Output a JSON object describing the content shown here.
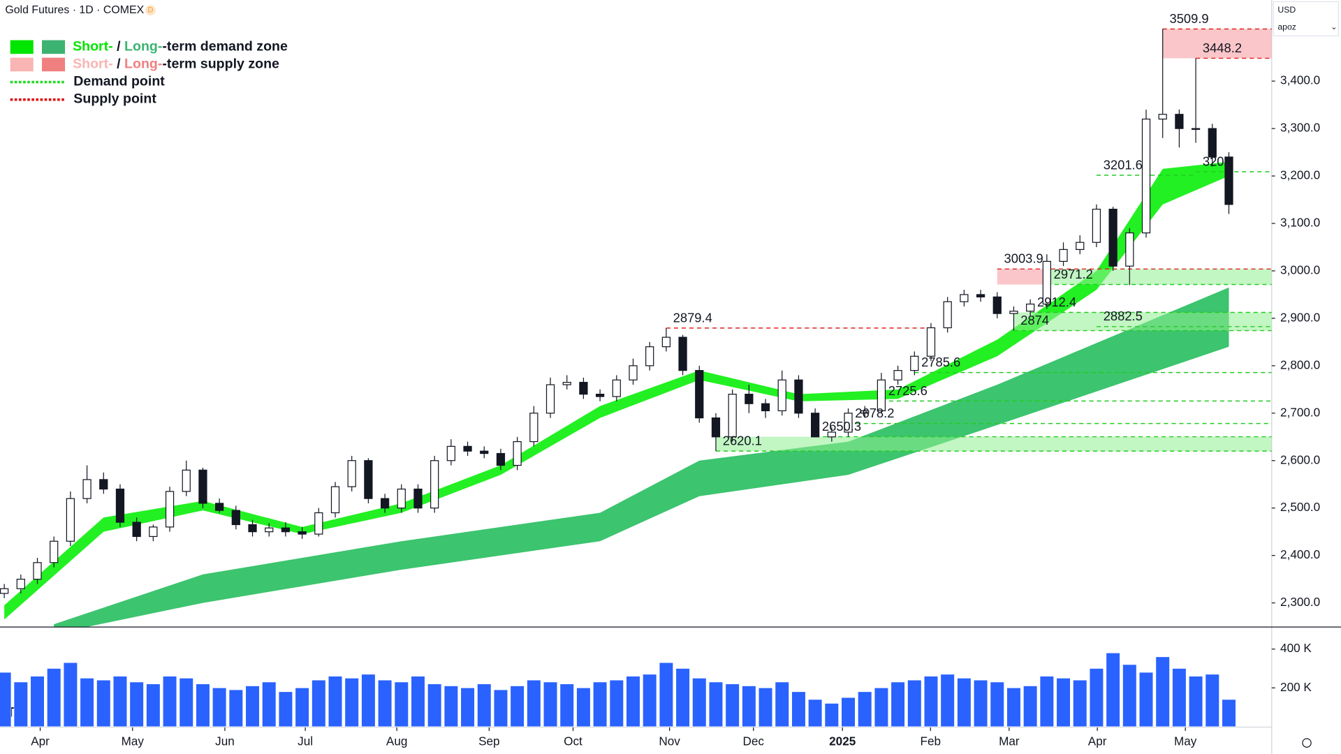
{
  "chart_data": {
    "type": "candlestick",
    "title": "Gold Futures · 1D · COMEX",
    "badge": "D",
    "currency": "USD",
    "user": "apoz",
    "open": [
      2320,
      2330,
      2350,
      2385,
      2430,
      2520,
      2560,
      2540,
      2470,
      2440,
      2460,
      2535,
      2580,
      2510,
      2495,
      2465,
      2450,
      2458,
      2450,
      2445,
      2490,
      2545,
      2600,
      2520,
      2500,
      2540,
      2500,
      2600,
      2630,
      2620,
      2615,
      2590,
      2640,
      2700,
      2760,
      2765,
      2740,
      2735,
      2770,
      2800,
      2840,
      2860,
      2790,
      2690,
      2650,
      2740,
      2720,
      2705,
      2770,
      2700,
      2650,
      2660,
      2700,
      2705,
      2770,
      2790,
      2820,
      2880,
      2935,
      2950,
      2945,
      2910,
      2915,
      2930,
      3020,
      3045,
      3060,
      3130,
      3010,
      3080,
      3320,
      3330,
      3300,
      3300,
      3240
    ],
    "high": [
      2340,
      2360,
      2395,
      2440,
      2535,
      2590,
      2575,
      2550,
      2480,
      2465,
      2545,
      2600,
      2585,
      2520,
      2505,
      2475,
      2468,
      2470,
      2460,
      2500,
      2555,
      2610,
      2605,
      2530,
      2550,
      2550,
      2610,
      2645,
      2640,
      2630,
      2625,
      2650,
      2715,
      2775,
      2780,
      2775,
      2750,
      2780,
      2815,
      2850,
      2879.4,
      2865,
      2800,
      2700,
      2750,
      2760,
      2730,
      2790,
      2780,
      2710,
      2670,
      2710,
      2715,
      2785,
      2800,
      2830,
      2890,
      2945,
      2960,
      2960,
      2955,
      2925,
      2940,
      3035,
      3060,
      3075,
      3140,
      3135,
      3090,
      3340,
      3509.9,
      3340,
      3448.2,
      3310,
      3250
    ],
    "low": [
      2310,
      2320,
      2340,
      2375,
      2420,
      2510,
      2530,
      2460,
      2430,
      2430,
      2450,
      2525,
      2500,
      2490,
      2455,
      2440,
      2440,
      2440,
      2435,
      2440,
      2480,
      2535,
      2510,
      2490,
      2490,
      2490,
      2490,
      2590,
      2610,
      2605,
      2580,
      2580,
      2630,
      2690,
      2750,
      2730,
      2725,
      2725,
      2760,
      2790,
      2830,
      2780,
      2680,
      2620.1,
      2640,
      2700,
      2690,
      2695,
      2690,
      2650.3,
      2640,
      2650,
      2690,
      2700,
      2760,
      2780,
      2810,
      2870,
      2925,
      2935,
      2900,
      2874.0,
      2905,
      2920,
      3010,
      3035,
      3050,
      3000,
      2970,
      3070,
      3280,
      3260,
      3270,
      3220,
      3120
    ],
    "close": [
      2330,
      2350,
      2385,
      2430,
      2520,
      2560,
      2540,
      2470,
      2440,
      2460,
      2535,
      2580,
      2510,
      2495,
      2465,
      2450,
      2458,
      2450,
      2445,
      2490,
      2545,
      2600,
      2520,
      2500,
      2540,
      2500,
      2600,
      2630,
      2620,
      2615,
      2590,
      2640,
      2700,
      2760,
      2765,
      2740,
      2735,
      2770,
      2800,
      2840,
      2860,
      2790,
      2690,
      2650,
      2740,
      2720,
      2705,
      2770,
      2700,
      2650,
      2660,
      2700,
      2705,
      2770,
      2790,
      2820,
      2880,
      2935,
      2950,
      2945,
      2910,
      2915,
      2930,
      3020,
      3045,
      3060,
      3130,
      3010,
      3080,
      3320,
      3330,
      3300,
      3300,
      3240,
      3140
    ],
    "ylim": [
      2250,
      3571
    ],
    "yticks": [
      {
        "value": 2300,
        "label": "2,300.0"
      },
      {
        "value": 2400,
        "label": "2,400.0"
      },
      {
        "value": 2500,
        "label": "2,500.0"
      },
      {
        "value": 2600,
        "label": "2,600.0"
      },
      {
        "value": 2700,
        "label": "2,700.0"
      },
      {
        "value": 2800,
        "label": "2,800.0"
      },
      {
        "value": 2900,
        "label": "2,900.0"
      },
      {
        "value": 3000,
        "label": "3,000.0"
      },
      {
        "value": 3100,
        "label": "3,100.0"
      },
      {
        "value": 3200,
        "label": "3,200.0"
      },
      {
        "value": 3300,
        "label": "3,300.0"
      },
      {
        "value": 3400,
        "label": "3,400.0"
      }
    ],
    "xticks": [
      {
        "value": 2.17,
        "label": "Apr"
      },
      {
        "value": 7.75,
        "label": "May"
      },
      {
        "value": 13.33,
        "label": "Jun"
      },
      {
        "value": 18.19,
        "label": "Jul"
      },
      {
        "value": 23.72,
        "label": "Aug"
      },
      {
        "value": 29.3,
        "label": "Sep"
      },
      {
        "value": 34.37,
        "label": "Oct"
      },
      {
        "value": 40.2,
        "label": "Nov"
      },
      {
        "value": 45.27,
        "label": "Dec"
      },
      {
        "value": 50.65,
        "label": "2025"
      },
      {
        "value": 55.97,
        "label": "Feb"
      },
      {
        "value": 60.72,
        "label": "Mar"
      },
      {
        "value": 66.05,
        "label": "Apr"
      },
      {
        "value": 71.37,
        "label": "May"
      }
    ],
    "short_band": {
      "color": "#22f022",
      "x": [
        0,
        6,
        12,
        18,
        24,
        30,
        36,
        42,
        48,
        54,
        60,
        66,
        70,
        74
      ],
      "upper": [
        2295,
        2480,
        2515,
        2460,
        2510,
        2590,
        2715,
        2790,
        2740,
        2750,
        2855,
        3000,
        3215,
        3230
      ],
      "lower": [
        2265,
        2450,
        2495,
        2445,
        2490,
        2570,
        2690,
        2770,
        2725,
        2730,
        2820,
        2960,
        3140,
        3200
      ]
    },
    "long_band": {
      "color": "#3cc46e",
      "x": [
        3,
        12,
        24,
        36,
        42,
        51,
        60,
        74
      ],
      "upper": [
        2255,
        2360,
        2430,
        2490,
        2600,
        2640,
        2760,
        2965
      ],
      "lower": [
        2235,
        2300,
        2370,
        2430,
        2525,
        2570,
        2675,
        2840
      ]
    },
    "zones": [
      {
        "kind": "demand",
        "low": 2620.1,
        "high": 2650.3,
        "from": 43
      },
      {
        "kind": "demand",
        "low": 2874.0,
        "high": 2912.4,
        "from": 61
      },
      {
        "kind": "demand",
        "low": 2971.2,
        "high": 3003.9,
        "from": 63
      },
      {
        "kind": "supply",
        "low": 2971.2,
        "high": 3003.9,
        "from": 60,
        "to": 63
      },
      {
        "kind": "supply",
        "low": 3448.2,
        "high": 3509.9,
        "from": 70
      }
    ],
    "levels": [
      {
        "value": 2620.1,
        "kind": "demand",
        "from": 43
      },
      {
        "value": 2650.3,
        "kind": "demand",
        "from": 49
      },
      {
        "value": 2678.2,
        "kind": "demand",
        "from": 51
      },
      {
        "value": 2725.6,
        "kind": "demand",
        "from": 53
      },
      {
        "value": 2785.6,
        "kind": "demand",
        "from": 55
      },
      {
        "value": 2874.0,
        "kind": "demand",
        "from": 61
      },
      {
        "value": 2912.4,
        "kind": "demand",
        "from": 62
      },
      {
        "value": 2971.2,
        "kind": "demand",
        "from": 63
      },
      {
        "value": 2882.5,
        "kind": "demand",
        "from": 66
      },
      {
        "value": 3201.6,
        "kind": "demand",
        "from": 66,
        "to": 72
      },
      {
        "value": 3209,
        "kind": "demand",
        "from": 72
      },
      {
        "value": 2879.4,
        "kind": "supply",
        "from": 40,
        "to": 56
      },
      {
        "value": 3003.9,
        "kind": "supply",
        "from": 60
      },
      {
        "value": 3448.2,
        "kind": "supply",
        "from": 72
      },
      {
        "value": 3509.9,
        "kind": "supply",
        "from": 70
      }
    ],
    "volume": {
      "color": "#2962ff",
      "ylim": [
        0,
        507000
      ],
      "yticks": [
        {
          "value": 200000,
          "label": "200 K"
        },
        {
          "value": 400000,
          "label": "400 K"
        }
      ],
      "values": [
        280000,
        230000,
        260000,
        300000,
        330000,
        250000,
        240000,
        260000,
        230000,
        220000,
        260000,
        250000,
        220000,
        200000,
        190000,
        210000,
        230000,
        180000,
        200000,
        240000,
        260000,
        250000,
        270000,
        240000,
        230000,
        260000,
        220000,
        210000,
        200000,
        220000,
        190000,
        210000,
        240000,
        230000,
        220000,
        200000,
        230000,
        240000,
        260000,
        270000,
        330000,
        300000,
        250000,
        230000,
        220000,
        210000,
        200000,
        230000,
        180000,
        140000,
        120000,
        150000,
        180000,
        200000,
        230000,
        240000,
        260000,
        270000,
        250000,
        240000,
        230000,
        200000,
        210000,
        260000,
        250000,
        240000,
        300000,
        380000,
        320000,
        280000,
        360000,
        300000,
        260000,
        270000,
        140000
      ]
    },
    "legend": [
      {
        "swatches": [
          "#00e600",
          "#3cb371"
        ],
        "parts": [
          {
            "text": "Short-",
            "color": "#00e600"
          },
          {
            "text": " / ",
            "color": "#131722"
          },
          {
            "text": "Long-",
            "color": "#3cb371"
          },
          {
            "text": "-term demand zone",
            "color": "#131722"
          }
        ]
      },
      {
        "swatches": [
          "#f9b4b4",
          "#f08080"
        ],
        "parts": [
          {
            "text": "Short-",
            "color": "#f9b4b4"
          },
          {
            "text": " / ",
            "color": "#131722"
          },
          {
            "text": "Long-",
            "color": "#f08080"
          },
          {
            "text": "-term supply zone",
            "color": "#131722"
          }
        ]
      },
      {
        "line": "#22dd22",
        "parts": [
          {
            "text": "Demand point",
            "color": "#131722"
          }
        ]
      },
      {
        "line": "#e01010",
        "parts": [
          {
            "text": "Supply point",
            "color": "#131722"
          }
        ]
      }
    ]
  }
}
